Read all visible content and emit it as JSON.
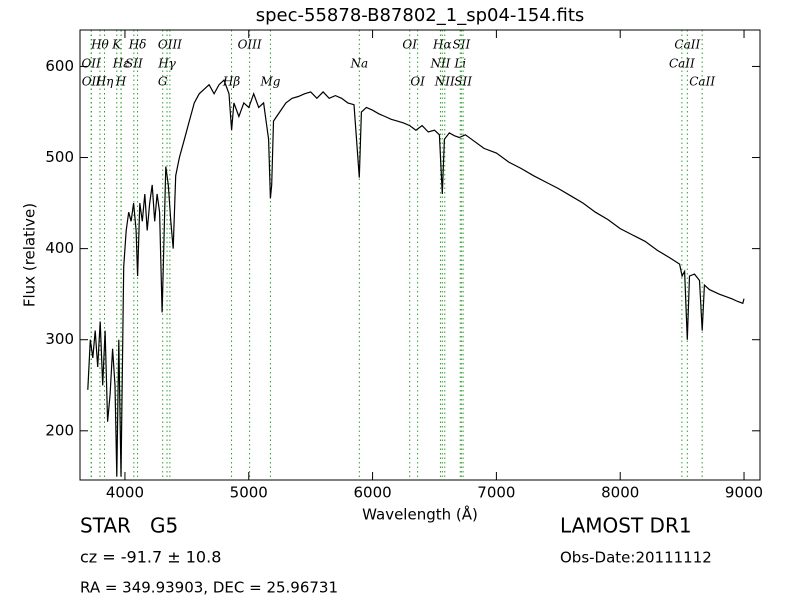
{
  "chart_data": {
    "type": "line",
    "title": "spec-55878-B87802_1_sp04-154.fits",
    "xlabel": "Wavelength (Å)",
    "ylabel": "Flux (relative)",
    "color": "#000000",
    "line_color": "#2ca02c",
    "xlim": [
      3637,
      9129
    ],
    "ylim": [
      146,
      640
    ],
    "xticks": [
      4000,
      5000,
      6000,
      7000,
      8000,
      9000
    ],
    "yticks": [
      200,
      300,
      400,
      500,
      600
    ],
    "x": [
      3700,
      3720,
      3740,
      3760,
      3780,
      3800,
      3820,
      3840,
      3860,
      3880,
      3900,
      3920,
      3934,
      3950,
      3968,
      3990,
      4010,
      4030,
      4050,
      4070,
      4090,
      4102,
      4120,
      4140,
      4160,
      4180,
      4200,
      4220,
      4240,
      4260,
      4280,
      4300,
      4310,
      4330,
      4350,
      4370,
      4390,
      4410,
      4440,
      4480,
      4520,
      4560,
      4600,
      4640,
      4680,
      4720,
      4760,
      4800,
      4840,
      4861,
      4880,
      4920,
      4960,
      5000,
      5040,
      5080,
      5120,
      5160,
      5175,
      5185,
      5200,
      5250,
      5300,
      5350,
      5400,
      5450,
      5500,
      5550,
      5600,
      5650,
      5700,
      5750,
      5800,
      5850,
      5893,
      5910,
      5950,
      6000,
      6050,
      6100,
      6150,
      6200,
      6250,
      6300,
      6350,
      6400,
      6450,
      6500,
      6540,
      6563,
      6580,
      6620,
      6660,
      6700,
      6750,
      6800,
      6900,
      7000,
      7100,
      7200,
      7300,
      7400,
      7500,
      7600,
      7700,
      7800,
      7900,
      8000,
      8100,
      8200,
      8300,
      8400,
      8480,
      8500,
      8520,
      8542,
      8560,
      8600,
      8640,
      8662,
      8680,
      8720,
      8800,
      8900,
      8950,
      8990,
      9000
    ],
    "values": [
      245,
      300,
      280,
      310,
      270,
      320,
      250,
      310,
      210,
      240,
      290,
      250,
      150,
      300,
      150,
      380,
      420,
      440,
      430,
      450,
      420,
      370,
      450,
      430,
      460,
      420,
      450,
      470,
      430,
      460,
      440,
      330,
      380,
      490,
      470,
      430,
      400,
      480,
      500,
      520,
      540,
      560,
      570,
      575,
      580,
      570,
      580,
      585,
      570,
      530,
      560,
      545,
      560,
      555,
      570,
      555,
      560,
      520,
      455,
      470,
      540,
      550,
      560,
      565,
      567,
      570,
      572,
      565,
      572,
      565,
      568,
      565,
      560,
      558,
      478,
      550,
      555,
      552,
      548,
      545,
      542,
      540,
      538,
      535,
      530,
      535,
      528,
      530,
      525,
      460,
      520,
      527,
      524,
      522,
      525,
      520,
      510,
      505,
      495,
      488,
      480,
      473,
      466,
      458,
      450,
      440,
      432,
      422,
      415,
      408,
      398,
      390,
      383,
      370,
      375,
      300,
      370,
      372,
      365,
      310,
      360,
      355,
      350,
      345,
      342,
      340,
      345
    ],
    "line_rows": [
      [
        {
          "label": "Hθ",
          "x": 3798
        },
        {
          "label": "K",
          "x": 3934
        },
        {
          "label": "Hδ",
          "x": 4102
        },
        {
          "label": "OIII",
          "x": 4363
        },
        {
          "label": "OIII",
          "x": 5007
        },
        {
          "label": "OI",
          "x": 6300
        },
        {
          "label": "Hα",
          "x": 6563
        },
        {
          "label": "SII",
          "x": 6717
        },
        {
          "label": "CaII",
          "x": 8542
        }
      ],
      [
        {
          "label": "OII",
          "x": 3727
        },
        {
          "label": "Hε",
          "x": 3970
        },
        {
          "label": "SII",
          "x": 4072
        },
        {
          "label": "Hγ",
          "x": 4340
        },
        {
          "label": "Na",
          "x": 5893
        },
        {
          "label": "NII",
          "x": 6548
        },
        {
          "label": "Li",
          "x": 6708
        },
        {
          "label": "CaII",
          "x": 8498
        }
      ],
      [
        {
          "label": "OII",
          "x": 3729
        },
        {
          "label": "Hη",
          "x": 3835
        },
        {
          "label": "H",
          "x": 3968
        },
        {
          "label": "G",
          "x": 4305
        },
        {
          "label": "Hβ",
          "x": 4861
        },
        {
          "label": "Mg",
          "x": 5175
        },
        {
          "label": "OI",
          "x": 6364
        },
        {
          "label": "NII",
          "x": 6583
        },
        {
          "label": "SII",
          "x": 6731
        },
        {
          "label": "CaII",
          "x": 8662
        }
      ]
    ]
  },
  "footer": {
    "class": "STAR   G5",
    "survey": "LAMOST DR1",
    "cz": "cz = -91.7 ± 10.8",
    "date": "Obs-Date:20111112",
    "coords": "RA = 349.93903, DEC = 25.96731"
  }
}
